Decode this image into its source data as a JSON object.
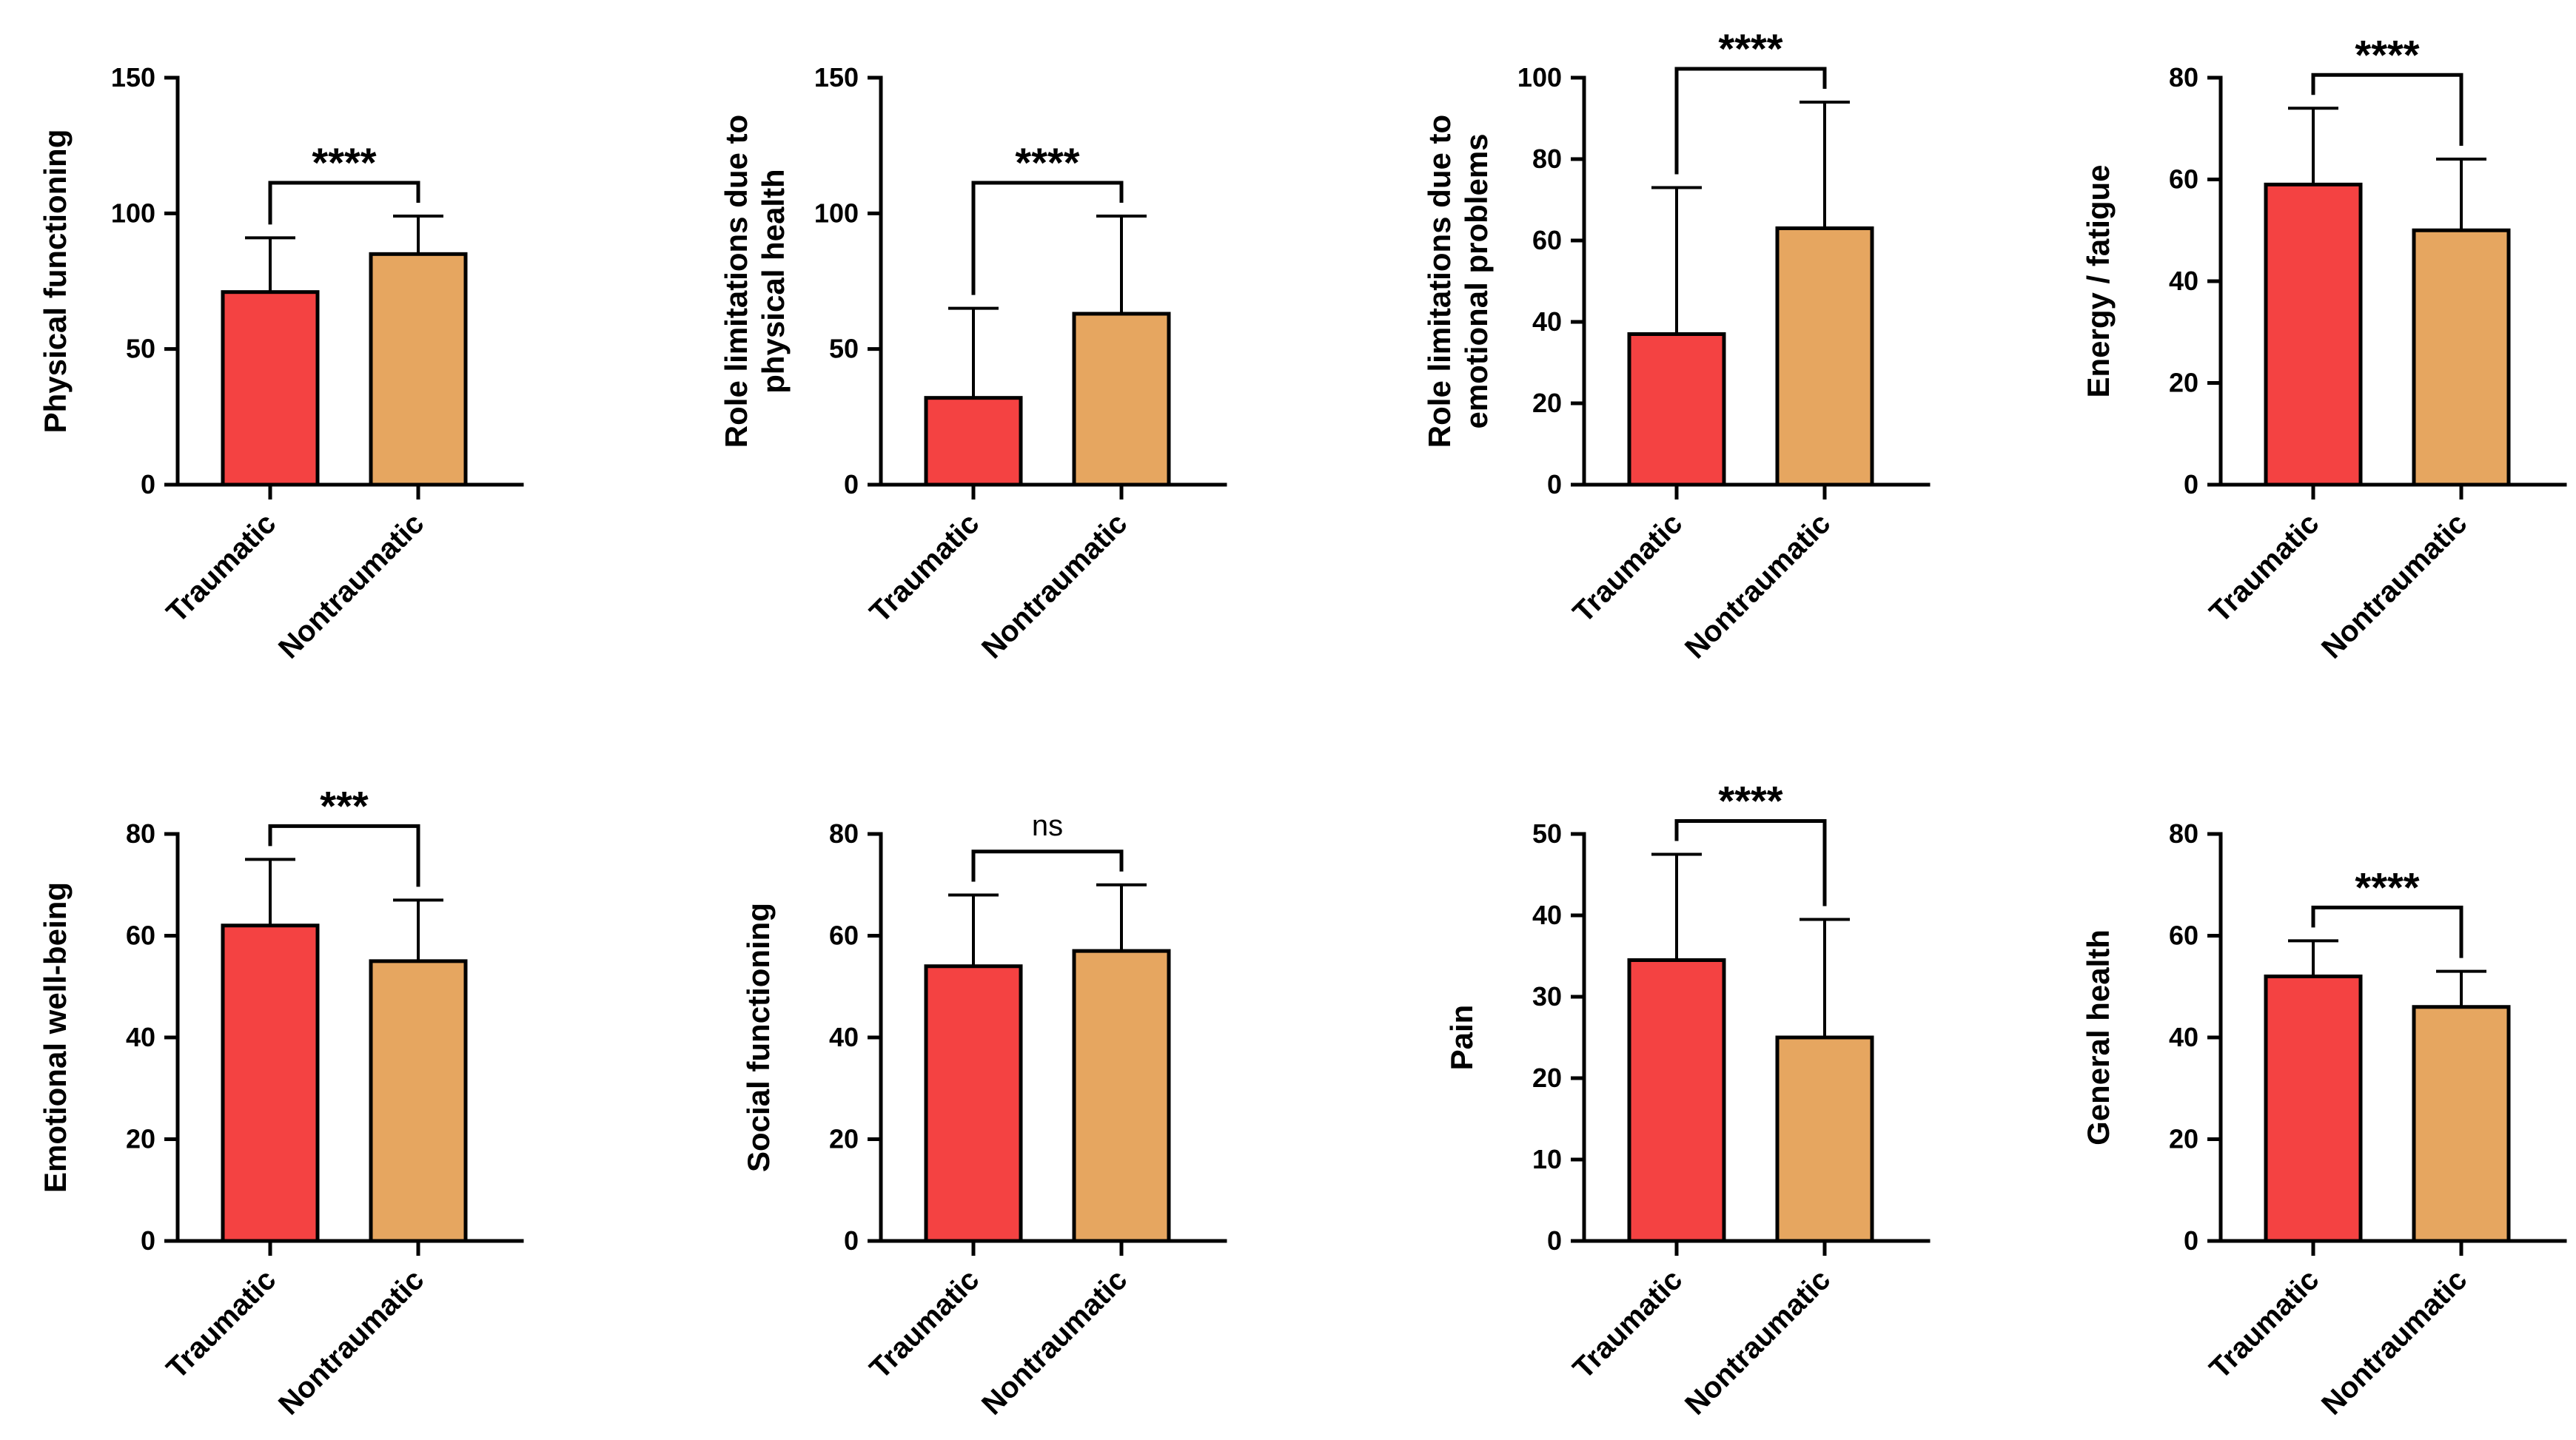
{
  "chart_data": [
    {
      "type": "bar",
      "title": "",
      "ylabel_lines": [
        "Physical functioning"
      ],
      "xlabel": "",
      "categories": [
        "Traumatic",
        "Nontraumatic"
      ],
      "values": [
        71,
        85
      ],
      "errors": [
        20,
        14
      ],
      "ylim": [
        0,
        150
      ],
      "yticks": [
        0,
        50,
        100,
        150
      ],
      "significance": "****",
      "bar_colors": [
        "#f44242",
        "#e6a660"
      ]
    },
    {
      "type": "bar",
      "title": "",
      "ylabel_lines": [
        "Role limitations due to",
        "physical health"
      ],
      "xlabel": "",
      "categories": [
        "Traumatic",
        "Nontraumatic"
      ],
      "values": [
        32,
        63
      ],
      "errors": [
        33,
        36
      ],
      "ylim": [
        0,
        150
      ],
      "yticks": [
        0,
        50,
        100,
        150
      ],
      "significance": "****",
      "bar_colors": [
        "#f44242",
        "#e6a660"
      ]
    },
    {
      "type": "bar",
      "title": "",
      "ylabel_lines": [
        "Role limitations due to",
        "emotional problems"
      ],
      "xlabel": "",
      "categories": [
        "Traumatic",
        "Nontraumatic"
      ],
      "values": [
        37,
        63
      ],
      "errors": [
        36,
        31
      ],
      "ylim": [
        0,
        100
      ],
      "yticks": [
        0,
        20,
        40,
        60,
        80,
        100
      ],
      "significance": "****",
      "bar_colors": [
        "#f44242",
        "#e6a660"
      ]
    },
    {
      "type": "bar",
      "title": "",
      "ylabel_lines": [
        "Energy / fatigue"
      ],
      "xlabel": "",
      "categories": [
        "Traumatic",
        "Nontraumatic"
      ],
      "values": [
        59,
        50
      ],
      "errors": [
        15,
        14
      ],
      "ylim": [
        0,
        80
      ],
      "yticks": [
        0,
        20,
        40,
        60,
        80
      ],
      "significance": "****",
      "bar_colors": [
        "#f44242",
        "#e6a660"
      ]
    },
    {
      "type": "bar",
      "title": "",
      "ylabel_lines": [
        "Emotional well-being"
      ],
      "xlabel": "",
      "categories": [
        "Traumatic",
        "Nontraumatic"
      ],
      "values": [
        62,
        55
      ],
      "errors": [
        13,
        12
      ],
      "ylim": [
        0,
        80
      ],
      "yticks": [
        0,
        20,
        40,
        60,
        80
      ],
      "significance": "***",
      "bar_colors": [
        "#f44242",
        "#e6a660"
      ]
    },
    {
      "type": "bar",
      "title": "",
      "ylabel_lines": [
        "Social functioning"
      ],
      "xlabel": "",
      "categories": [
        "Traumatic",
        "Nontraumatic"
      ],
      "values": [
        54,
        57
      ],
      "errors": [
        14,
        13
      ],
      "ylim": [
        0,
        80
      ],
      "yticks": [
        0,
        20,
        40,
        60,
        80
      ],
      "significance": "ns",
      "bar_colors": [
        "#f44242",
        "#e6a660"
      ]
    },
    {
      "type": "bar",
      "title": "",
      "ylabel_lines": [
        "Pain"
      ],
      "xlabel": "",
      "categories": [
        "Traumatic",
        "Nontraumatic"
      ],
      "values": [
        34.5,
        25
      ],
      "errors": [
        13,
        14.5
      ],
      "ylim": [
        0,
        50
      ],
      "yticks": [
        0,
        10,
        20,
        30,
        40,
        50
      ],
      "significance": "****",
      "bar_colors": [
        "#f44242",
        "#e6a660"
      ]
    },
    {
      "type": "bar",
      "title": "",
      "ylabel_lines": [
        "General health"
      ],
      "xlabel": "",
      "categories": [
        "Traumatic",
        "Nontraumatic"
      ],
      "values": [
        52,
        46
      ],
      "errors": [
        7,
        7
      ],
      "ylim": [
        0,
        80
      ],
      "yticks": [
        0,
        20,
        40,
        60,
        80
      ],
      "significance": "****",
      "bar_colors": [
        "#f44242",
        "#e6a660"
      ]
    }
  ]
}
